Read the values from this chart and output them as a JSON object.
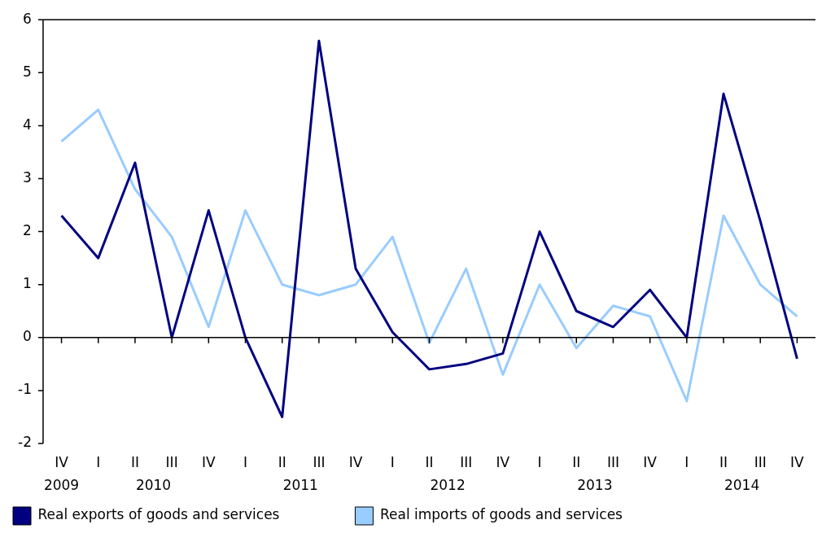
{
  "chart_data": {
    "type": "line",
    "categories": [
      "IV",
      "I",
      "II",
      "III",
      "IV",
      "I",
      "II",
      "III",
      "IV",
      "I",
      "II",
      "III",
      "IV",
      "I",
      "II",
      "III",
      "IV",
      "I",
      "II",
      "III",
      "IV"
    ],
    "series": [
      {
        "name": "Real exports of goods and services",
        "color": "#000080",
        "values": [
          2.3,
          1.5,
          3.3,
          0.0,
          2.4,
          0.0,
          -1.5,
          5.6,
          1.3,
          0.1,
          -0.6,
          -0.5,
          -0.3,
          2.0,
          0.5,
          0.2,
          0.9,
          0.0,
          4.6,
          2.2,
          -0.4
        ]
      },
      {
        "name": "Real imports of goods and services",
        "color": "#99ccff",
        "values": [
          3.7,
          4.3,
          2.8,
          1.9,
          0.2,
          2.4,
          1.0,
          0.8,
          1.0,
          1.9,
          -0.1,
          1.3,
          -0.7,
          1.0,
          -0.2,
          0.6,
          0.4,
          -1.2,
          2.3,
          1.0,
          0.4
        ]
      }
    ],
    "annotations": [
      "2009",
      "2010",
      "2011",
      "2012",
      "2013",
      "2014"
    ],
    "ylim": [
      -2,
      6
    ],
    "yticks": [
      -2,
      -1,
      0,
      1,
      2,
      3,
      4,
      5,
      6
    ],
    "ref_lines": [
      {
        "axis": "y",
        "value": 0,
        "color": "#000000"
      }
    ],
    "grid": false,
    "legend": "bottom",
    "marker": "none",
    "line_style": "solid"
  }
}
